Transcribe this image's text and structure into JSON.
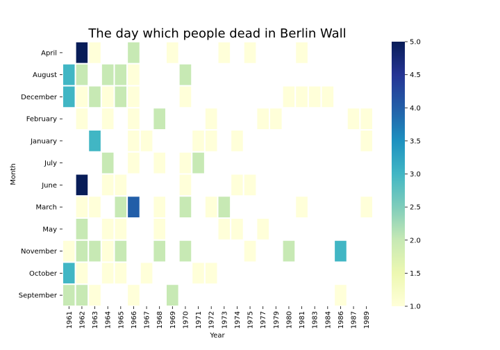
{
  "chart_data": {
    "type": "heatmap",
    "title": "The day which people dead in Berlin Wall",
    "xlabel": "Year",
    "ylabel": "Month",
    "x": [
      "1961",
      "1962",
      "1963",
      "1964",
      "1965",
      "1966",
      "1967",
      "1968",
      "1969",
      "1970",
      "1971",
      "1972",
      "1973",
      "1974",
      "1975",
      "1977",
      "1979",
      "1980",
      "1981",
      "1983",
      "1984",
      "1986",
      "1987",
      "1989"
    ],
    "y": [
      "April",
      "August",
      "December",
      "February",
      "January",
      "July",
      "June",
      "March",
      "May",
      "November",
      "October",
      "September"
    ],
    "cells": [
      {
        "month": "April",
        "year": "1962",
        "value": 5
      },
      {
        "month": "April",
        "year": "1963",
        "value": 1
      },
      {
        "month": "April",
        "year": "1966",
        "value": 2
      },
      {
        "month": "April",
        "year": "1969",
        "value": 1
      },
      {
        "month": "April",
        "year": "1973",
        "value": 1
      },
      {
        "month": "April",
        "year": "1975",
        "value": 1
      },
      {
        "month": "April",
        "year": "1981",
        "value": 1
      },
      {
        "month": "August",
        "year": "1961",
        "value": 3
      },
      {
        "month": "August",
        "year": "1962",
        "value": 2
      },
      {
        "month": "August",
        "year": "1964",
        "value": 2
      },
      {
        "month": "August",
        "year": "1965",
        "value": 2
      },
      {
        "month": "August",
        "year": "1966",
        "value": 1
      },
      {
        "month": "August",
        "year": "1970",
        "value": 2
      },
      {
        "month": "December",
        "year": "1961",
        "value": 3
      },
      {
        "month": "December",
        "year": "1962",
        "value": 1
      },
      {
        "month": "December",
        "year": "1963",
        "value": 2
      },
      {
        "month": "December",
        "year": "1964",
        "value": 1
      },
      {
        "month": "December",
        "year": "1965",
        "value": 2
      },
      {
        "month": "December",
        "year": "1966",
        "value": 1
      },
      {
        "month": "December",
        "year": "1970",
        "value": 1
      },
      {
        "month": "December",
        "year": "1980",
        "value": 1
      },
      {
        "month": "December",
        "year": "1981",
        "value": 1
      },
      {
        "month": "December",
        "year": "1983",
        "value": 1
      },
      {
        "month": "December",
        "year": "1984",
        "value": 1
      },
      {
        "month": "February",
        "year": "1962",
        "value": 1
      },
      {
        "month": "February",
        "year": "1964",
        "value": 1
      },
      {
        "month": "February",
        "year": "1966",
        "value": 1
      },
      {
        "month": "February",
        "year": "1968",
        "value": 2
      },
      {
        "month": "February",
        "year": "1972",
        "value": 1
      },
      {
        "month": "February",
        "year": "1977",
        "value": 1
      },
      {
        "month": "February",
        "year": "1979",
        "value": 1
      },
      {
        "month": "February",
        "year": "1987",
        "value": 1
      },
      {
        "month": "February",
        "year": "1989",
        "value": 1
      },
      {
        "month": "January",
        "year": "1963",
        "value": 3
      },
      {
        "month": "January",
        "year": "1966",
        "value": 1
      },
      {
        "month": "January",
        "year": "1967",
        "value": 1
      },
      {
        "month": "January",
        "year": "1971",
        "value": 1
      },
      {
        "month": "January",
        "year": "1972",
        "value": 1
      },
      {
        "month": "January",
        "year": "1974",
        "value": 1
      },
      {
        "month": "January",
        "year": "1989",
        "value": 1
      },
      {
        "month": "July",
        "year": "1964",
        "value": 2
      },
      {
        "month": "July",
        "year": "1966",
        "value": 1
      },
      {
        "month": "July",
        "year": "1968",
        "value": 1
      },
      {
        "month": "July",
        "year": "1970",
        "value": 1
      },
      {
        "month": "July",
        "year": "1971",
        "value": 2
      },
      {
        "month": "June",
        "year": "1962",
        "value": 5
      },
      {
        "month": "June",
        "year": "1964",
        "value": 1
      },
      {
        "month": "June",
        "year": "1965",
        "value": 1
      },
      {
        "month": "June",
        "year": "1970",
        "value": 1
      },
      {
        "month": "June",
        "year": "1974",
        "value": 1
      },
      {
        "month": "June",
        "year": "1975",
        "value": 1
      },
      {
        "month": "March",
        "year": "1962",
        "value": 1
      },
      {
        "month": "March",
        "year": "1963",
        "value": 1
      },
      {
        "month": "March",
        "year": "1965",
        "value": 2
      },
      {
        "month": "March",
        "year": "1966",
        "value": 4
      },
      {
        "month": "March",
        "year": "1968",
        "value": 1
      },
      {
        "month": "March",
        "year": "1970",
        "value": 2
      },
      {
        "month": "March",
        "year": "1972",
        "value": 1
      },
      {
        "month": "March",
        "year": "1973",
        "value": 2
      },
      {
        "month": "March",
        "year": "1981",
        "value": 1
      },
      {
        "month": "March",
        "year": "1989",
        "value": 1
      },
      {
        "month": "May",
        "year": "1962",
        "value": 2
      },
      {
        "month": "May",
        "year": "1964",
        "value": 1
      },
      {
        "month": "May",
        "year": "1965",
        "value": 1
      },
      {
        "month": "May",
        "year": "1968",
        "value": 1
      },
      {
        "month": "May",
        "year": "1973",
        "value": 1
      },
      {
        "month": "May",
        "year": "1974",
        "value": 1
      },
      {
        "month": "May",
        "year": "1977",
        "value": 1
      },
      {
        "month": "November",
        "year": "1961",
        "value": 1
      },
      {
        "month": "November",
        "year": "1962",
        "value": 2
      },
      {
        "month": "November",
        "year": "1963",
        "value": 2
      },
      {
        "month": "November",
        "year": "1964",
        "value": 1
      },
      {
        "month": "November",
        "year": "1965",
        "value": 2
      },
      {
        "month": "November",
        "year": "1968",
        "value": 2
      },
      {
        "month": "November",
        "year": "1970",
        "value": 2
      },
      {
        "month": "November",
        "year": "1975",
        "value": 1
      },
      {
        "month": "November",
        "year": "1980",
        "value": 2
      },
      {
        "month": "November",
        "year": "1986",
        "value": 3
      },
      {
        "month": "October",
        "year": "1961",
        "value": 3
      },
      {
        "month": "October",
        "year": "1962",
        "value": 1
      },
      {
        "month": "October",
        "year": "1964",
        "value": 1
      },
      {
        "month": "October",
        "year": "1965",
        "value": 1
      },
      {
        "month": "October",
        "year": "1967",
        "value": 1
      },
      {
        "month": "October",
        "year": "1971",
        "value": 1
      },
      {
        "month": "October",
        "year": "1972",
        "value": 1
      },
      {
        "month": "September",
        "year": "1961",
        "value": 2
      },
      {
        "month": "September",
        "year": "1962",
        "value": 2
      },
      {
        "month": "September",
        "year": "1963",
        "value": 1
      },
      {
        "month": "September",
        "year": "1966",
        "value": 1
      },
      {
        "month": "September",
        "year": "1969",
        "value": 2
      },
      {
        "month": "September",
        "year": "1986",
        "value": 1
      }
    ],
    "colorbar": {
      "min": 1.0,
      "max": 5.0,
      "ticks": [
        "1.0",
        "1.5",
        "2.0",
        "2.5",
        "3.0",
        "3.5",
        "4.0",
        "4.5",
        "5.0"
      ],
      "colormap": "YlGnBu",
      "colors": [
        "#ffffd9",
        "#edf8b1",
        "#c7e9b4",
        "#7fcdbb",
        "#41b6c4",
        "#1d91c0",
        "#225ea8",
        "#253494",
        "#081d58"
      ]
    },
    "grid": false,
    "legend": "colorbar-right"
  }
}
